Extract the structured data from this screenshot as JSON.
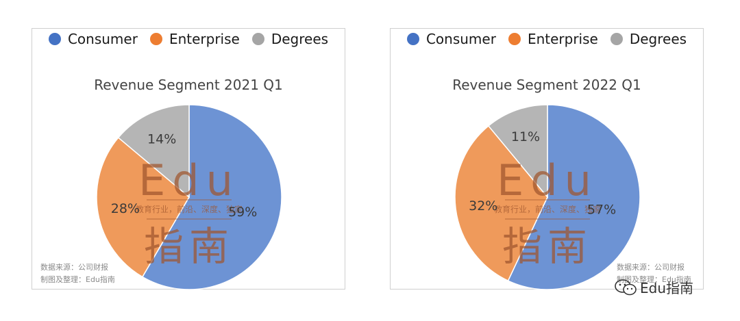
{
  "colors": {
    "Consumer": "#6d93d4",
    "Enterprise": "#ef9a5b",
    "Degrees": "#b5b5b5",
    "legend_Consumer": "#4472c4",
    "legend_Enterprise": "#ed7d31",
    "legend_Degrees": "#a5a5a5",
    "watermark_edu": "#a0562e",
    "watermark_blue": "#3a5a8c"
  },
  "watermark": {
    "latin": "Edu",
    "tagline": "教育行业，前沿、深度、独家",
    "cjk": "指南"
  },
  "sources": [
    {
      "line1": "数据来源：公司财报",
      "line2": "制图及整理：Edu指南"
    },
    {
      "line1": "数据来源：公司财报",
      "line2": "制图及整理：Edu指南"
    }
  ],
  "wechat_label": "Edu指南",
  "chart_data": [
    {
      "type": "pie",
      "title": "Revenue Segment 2021 Q1",
      "legend": [
        "Consumer",
        "Enterprise",
        "Degrees"
      ],
      "legend_position": "top",
      "slices": [
        {
          "label": "Consumer",
          "value": 59,
          "text": "59%"
        },
        {
          "label": "Enterprise",
          "value": 28,
          "text": "28%"
        },
        {
          "label": "Degrees",
          "value": 14,
          "text": "14%"
        }
      ]
    },
    {
      "type": "pie",
      "title": "Revenue Segment 2022 Q1",
      "legend": [
        "Consumer",
        "Enterprise",
        "Degrees"
      ],
      "legend_position": "top",
      "slices": [
        {
          "label": "Consumer",
          "value": 57,
          "text": "57%"
        },
        {
          "label": "Enterprise",
          "value": 32,
          "text": "32%"
        },
        {
          "label": "Degrees",
          "value": 11,
          "text": "11%"
        }
      ]
    }
  ]
}
